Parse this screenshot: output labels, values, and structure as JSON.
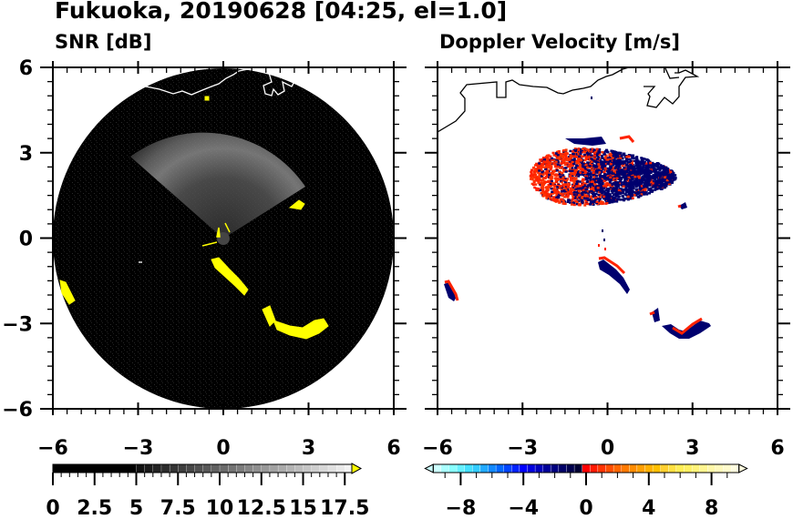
{
  "figure": {
    "title": "Fukuoka, 20190628 [04:25, el=1.0]"
  },
  "chart_data": [
    {
      "type": "heatmap",
      "title": "SNR [dB]",
      "xlim": [
        -6,
        6
      ],
      "ylim": [
        -6,
        6
      ],
      "xticks": [
        "-6",
        "-3",
        "0",
        "3",
        "6"
      ],
      "yticks": [
        "6",
        "3",
        "0",
        "-3",
        "-6"
      ],
      "xtick_values": [
        -6,
        -3,
        0,
        3,
        6
      ],
      "ytick_values": [
        6,
        3,
        0,
        -3,
        -6
      ],
      "colorbar": {
        "range": [
          0,
          18.25
        ],
        "labels": [
          "0",
          "2.5",
          "5",
          "7.5",
          "10",
          "12.5",
          "15",
          "17.5"
        ],
        "label_values": [
          0,
          2.5,
          5,
          7.5,
          10,
          12.5,
          15,
          17.5
        ],
        "low_color": "#000000",
        "high_color": "#f2f2f2",
        "extend_color": "#ffff00"
      },
      "features": {
        "scan_radius_km": 6,
        "background_color": "#000000",
        "clutter_color": "#ffff00",
        "coastline_color": "#ffffff"
      }
    },
    {
      "type": "heatmap",
      "title": "Doppler Velocity [m/s]",
      "xlim": [
        -6,
        6
      ],
      "ylim": [
        -6,
        6
      ],
      "xticks": [
        "-6",
        "-3",
        "0",
        "3",
        "6"
      ],
      "yticks": [
        "6",
        "3",
        "0",
        "-3",
        "-6"
      ],
      "xtick_values": [
        -6,
        -3,
        0,
        3,
        6
      ],
      "ytick_values": [
        6,
        3,
        0,
        -3,
        -6
      ],
      "colorbar": {
        "range": [
          -9.75,
          9.75
        ],
        "labels": [
          "−8",
          "−4",
          "0",
          "4",
          "8"
        ],
        "label_values": [
          -8,
          -4,
          0,
          4,
          8
        ],
        "colors": [
          "#ccffff",
          "#aaffff",
          "#88ffff",
          "#66f0ff",
          "#44e0ff",
          "#33ccff",
          "#22aaff",
          "#1188ff",
          "#0066ff",
          "#0044ff",
          "#0022ff",
          "#0000ff",
          "#0000dd",
          "#0000bb",
          "#000099",
          "#000080",
          "#000066",
          "#00004d",
          "#000033",
          "#ff0000",
          "#ff1a00",
          "#ff3300",
          "#ff4d00",
          "#ff6600",
          "#ff7a00",
          "#ff8c00",
          "#ff9f00",
          "#ffb000",
          "#ffc000",
          "#ffd030",
          "#ffe040",
          "#ffee55",
          "#fff060",
          "#fff37a",
          "#fff590",
          "#fff7a8",
          "#fff9bb",
          "#fffbcc",
          "#fffde0"
        ],
        "negative_color": "#00006e",
        "positive_color": "#ff2200"
      }
    }
  ]
}
